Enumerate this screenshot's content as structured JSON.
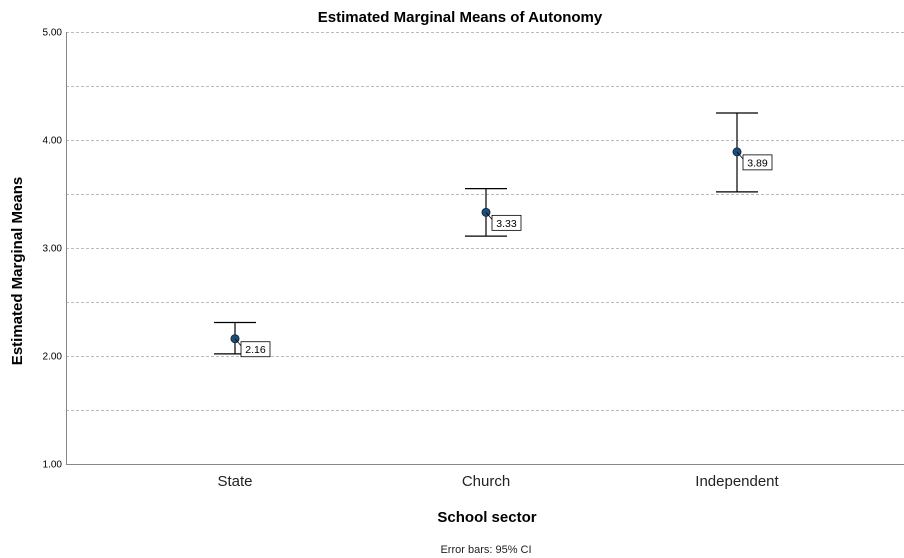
{
  "chart_data": {
    "type": "scatter",
    "title": "Estimated Marginal Means of Autonomy",
    "xlabel": "School sector",
    "ylabel": "Estimated Marginal Means",
    "categories": [
      "State",
      "Church",
      "Independent"
    ],
    "values": [
      2.16,
      3.33,
      3.89
    ],
    "ci_lower": [
      2.02,
      3.11,
      3.52
    ],
    "ci_upper": [
      2.31,
      3.55,
      4.25
    ],
    "data_labels": [
      "2.16",
      "3.33",
      "3.89"
    ],
    "ylim": [
      1.0,
      5.0
    ],
    "yticks": [
      1.0,
      2.0,
      3.0,
      4.0,
      5.0
    ],
    "ytick_labels": [
      "1.00",
      "2.00",
      "3.00",
      "4.00",
      "5.00"
    ],
    "gridlines": [
      1.5,
      2.0,
      2.5,
      3.0,
      3.5,
      4.0,
      4.5,
      5.0
    ],
    "grid": true,
    "footnote": "Error bars: 95% CI",
    "colors": {
      "marker": "#1f4e79",
      "error_bar": "#000000",
      "grid": "#bbbbbb",
      "axis": "#888888"
    }
  }
}
